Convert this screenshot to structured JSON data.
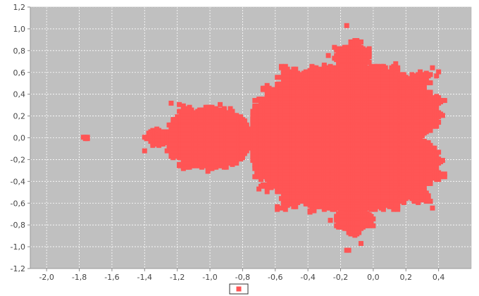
{
  "chart_data": {
    "type": "scatter",
    "title": "",
    "xlabel": "",
    "ylabel": "",
    "xlim": [
      -2.1,
      0.6
    ],
    "ylim": [
      -1.2,
      1.2
    ],
    "x_ticks": [
      "-2,0",
      "-1,8",
      "-1,6",
      "-1,4",
      "-1,2",
      "-1,0",
      "-0,8",
      "-0,6",
      "-0,4",
      "-0,2",
      "0,0",
      "0,2",
      "0,4"
    ],
    "y_ticks": [
      "1,2",
      "1,0",
      "0,8",
      "0,6",
      "0,4",
      "0,2",
      "0,0",
      "-0,2",
      "-0,4",
      "-0,6",
      "-0,8",
      "-1,0",
      "-1,2"
    ],
    "grid": true,
    "legend": {
      "placement": "bottom-center",
      "entries": [
        ""
      ]
    },
    "colors": {
      "plot_background": "#c0c0c0",
      "series": "#ff5555",
      "grid": "#ffffff",
      "axis": "#888888"
    },
    "series": [
      {
        "name": "",
        "description_of_points": "Mandelbrot set points (escape-time test), x in [-2, 0.5], y in [-1.12, 1.12]",
        "x_step": 0.0125,
        "y_step": 0.0125,
        "max_iterations": 40
      }
    ]
  }
}
